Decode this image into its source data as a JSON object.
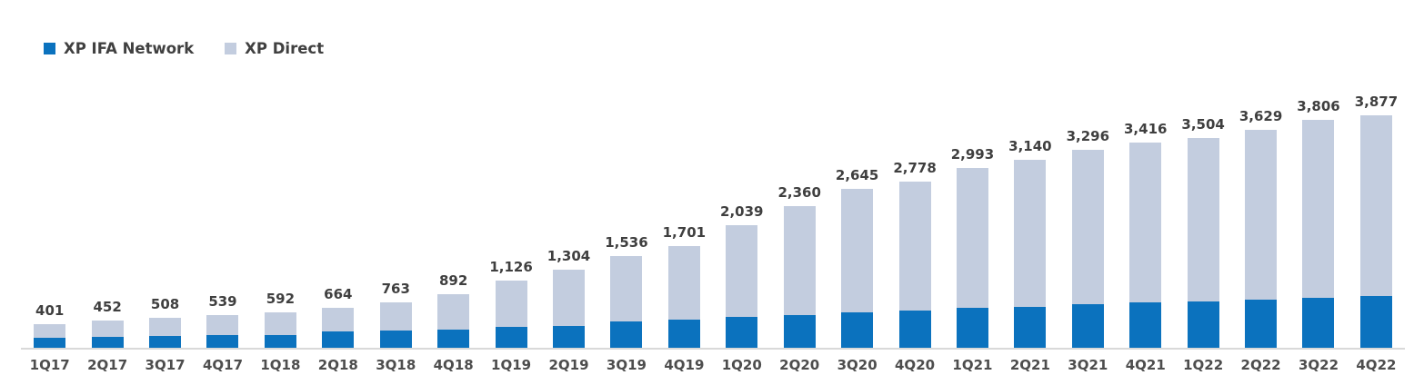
{
  "legend": [
    {
      "label": "XP IFA Network",
      "color": "#0B72BE"
    },
    {
      "label": "XP Direct",
      "color": "#C3CDDF"
    }
  ],
  "chart_data": {
    "type": "bar",
    "stacked": true,
    "title": "",
    "xlabel": "",
    "ylabel": "",
    "grid": false,
    "legend_position": "top-left",
    "ylim": [
      0,
      4000
    ],
    "axis_line_color": "#D9D9D9",
    "total_label_color": "#3F3F3F",
    "tick_label_color": "#4D4D4D",
    "categories": [
      "1Q17",
      "2Q17",
      "3Q17",
      "4Q17",
      "1Q18",
      "2Q18",
      "3Q18",
      "4Q18",
      "1Q19",
      "2Q19",
      "3Q19",
      "4Q19",
      "1Q20",
      "2Q20",
      "3Q20",
      "4Q20",
      "1Q21",
      "2Q21",
      "3Q21",
      "4Q21",
      "1Q22",
      "2Q22",
      "3Q22",
      "4Q22"
    ],
    "series": [
      {
        "name": "XP IFA Network",
        "color": "#0B72BE",
        "values": [
          165,
          190,
          200,
          210,
          220,
          270,
          285,
          310,
          345,
          370,
          435,
          470,
          510,
          550,
          585,
          620,
          660,
          685,
          730,
          755,
          775,
          800,
          830,
          865
        ]
      },
      {
        "name": "XP Direct",
        "color": "#C3CDDF",
        "values": [
          236,
          262,
          308,
          329,
          372,
          394,
          478,
          582,
          781,
          934,
          1101,
          1231,
          1529,
          1810,
          2060,
          2158,
          2333,
          2455,
          2566,
          2661,
          2729,
          2829,
          2976,
          3012
        ]
      }
    ],
    "totals": [
      401,
      452,
      508,
      539,
      592,
      664,
      763,
      892,
      1126,
      1304,
      1536,
      1701,
      2039,
      2360,
      2645,
      2778,
      2993,
      3140,
      3296,
      3416,
      3504,
      3629,
      3806,
      3877
    ],
    "total_labels": [
      "401",
      "452",
      "508",
      "539",
      "592",
      "664",
      "763",
      "892",
      "1,126",
      "1,304",
      "1,536",
      "1,701",
      "2,039",
      "2,360",
      "2,645",
      "2,778",
      "2,993",
      "3,140",
      "3,296",
      "3,416",
      "3,504",
      "3,629",
      "3,806",
      "3,877"
    ]
  }
}
